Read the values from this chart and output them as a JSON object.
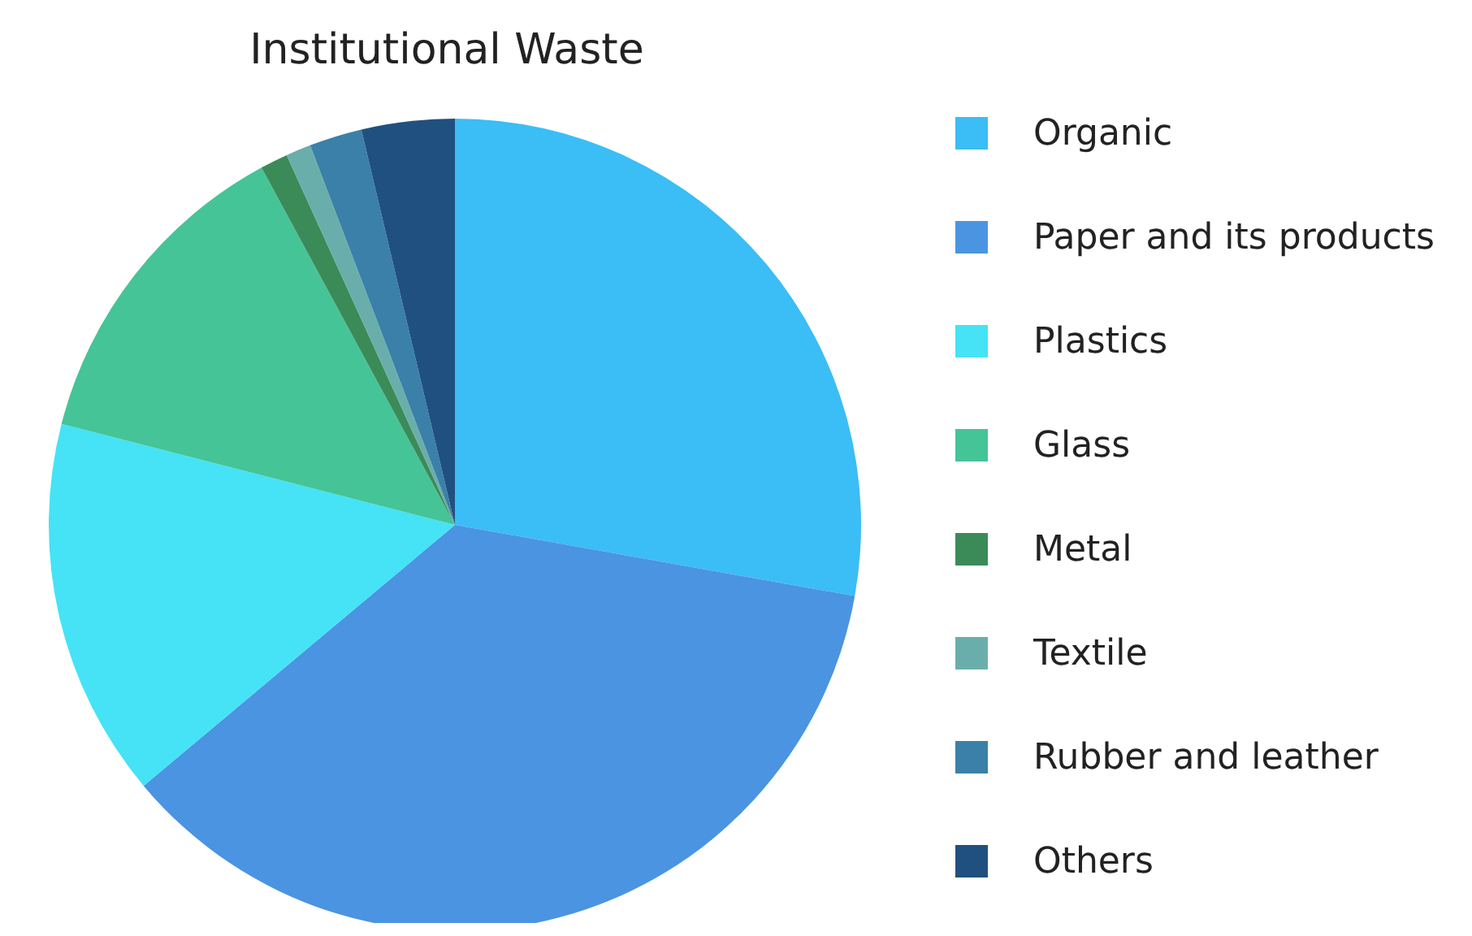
{
  "chart_data": {
    "type": "pie",
    "title": "Institutional Waste",
    "categories": [
      "Organic",
      "Paper and its products",
      "Plastics",
      "Glass",
      "Metal",
      "Textile",
      "Rubber and leather",
      "Others"
    ],
    "values": [
      27.8,
      36.1,
      15.1,
      13.1,
      1.1,
      1,
      2.1,
      3.7
    ],
    "colors": [
      "#3bbdf6",
      "#4a94e2",
      "#45e3f5",
      "#45c497",
      "#3b8b58",
      "#6aaeab",
      "#3a80a8",
      "#20507f"
    ],
    "legend": "right"
  }
}
